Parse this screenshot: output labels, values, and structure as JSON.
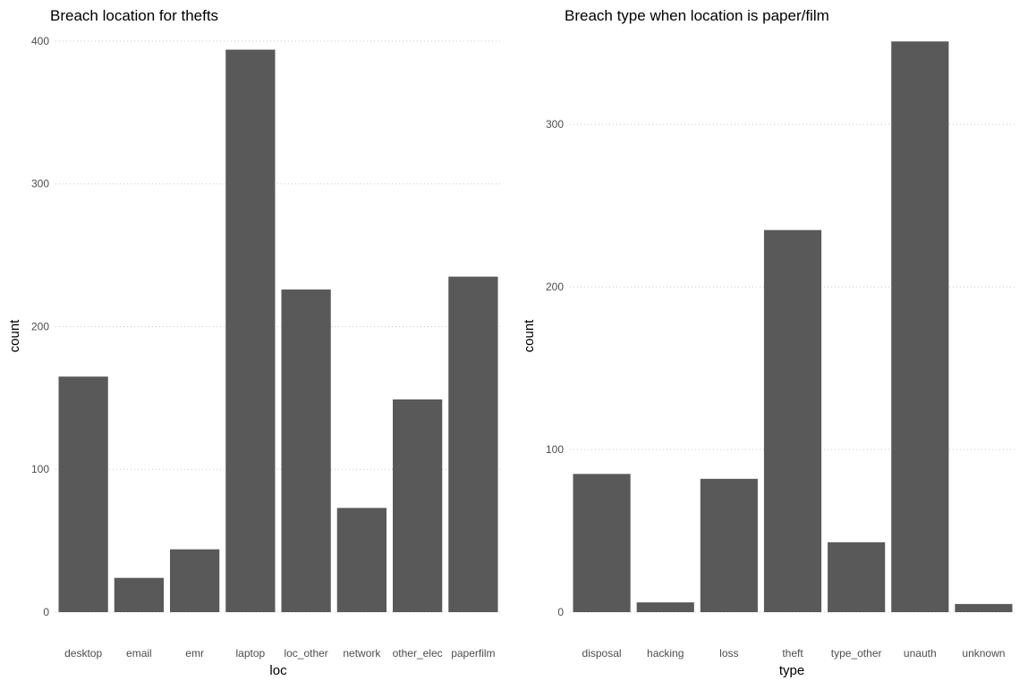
{
  "chart_data": [
    {
      "type": "bar",
      "title": "Breach location for thefts",
      "xlabel": "loc",
      "ylabel": "count",
      "categories": [
        "desktop",
        "email",
        "emr",
        "laptop",
        "loc_other",
        "network",
        "other_elec",
        "paperfilm"
      ],
      "values": [
        165,
        24,
        44,
        394,
        226,
        73,
        149,
        235
      ],
      "ylim": [
        0,
        410
      ],
      "yticks": [
        0,
        100,
        200,
        300,
        400
      ],
      "grid": true,
      "bar_color": "#595959"
    },
    {
      "type": "bar",
      "title": "Breach type when location is paper/film",
      "xlabel": "type",
      "ylabel": "count",
      "categories": [
        "disposal",
        "hacking",
        "loss",
        "theft",
        "type_other",
        "unauth",
        "unknown"
      ],
      "values": [
        85,
        6,
        82,
        235,
        43,
        351,
        5
      ],
      "ylim": [
        0,
        360
      ],
      "yticks": [
        0,
        100,
        200,
        300
      ],
      "grid": true,
      "bar_color": "#595959"
    }
  ]
}
